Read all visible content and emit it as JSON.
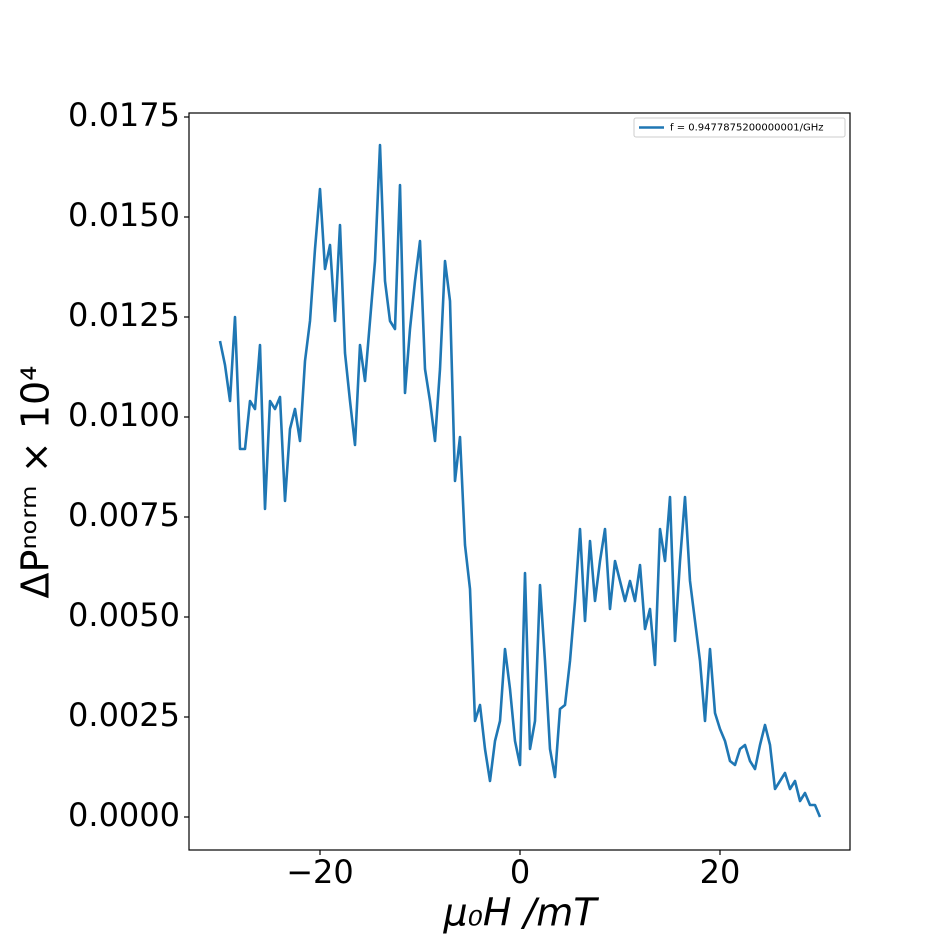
{
  "chart_data": {
    "type": "line",
    "x_label": "μ₀H /mT",
    "y_label": "ΔPⁿᵒʳᵐ × 10⁴",
    "legend_position": "upper right",
    "x": [
      -30,
      -29.5,
      -29,
      -28.5,
      -28,
      -27.5,
      -27,
      -26.5,
      -26,
      -25.5,
      -25,
      -24.5,
      -24,
      -23.5,
      -23,
      -22.5,
      -22,
      -21.5,
      -21,
      -20.5,
      -20,
      -19.5,
      -19,
      -18.5,
      -18,
      -17.5,
      -17,
      -16.5,
      -16,
      -15.5,
      -15,
      -14.5,
      -14,
      -13.5,
      -13,
      -12.5,
      -12,
      -11.5,
      -11,
      -10.5,
      -10,
      -9.5,
      -9,
      -8.5,
      -8,
      -7.5,
      -7,
      -6.5,
      -6,
      -5.5,
      -5,
      -4.5,
      -4,
      -3.5,
      -3,
      -2.5,
      -2,
      -1.5,
      -1,
      -0.5,
      0,
      0.5,
      1,
      1.5,
      2,
      2.5,
      3,
      3.5,
      4,
      4.5,
      5,
      5.5,
      6,
      6.5,
      7,
      7.5,
      8,
      8.5,
      9,
      9.5,
      10,
      10.5,
      11,
      11.5,
      12,
      12.5,
      13,
      13.5,
      14,
      14.5,
      15,
      15.5,
      16,
      16.5,
      17,
      17.5,
      18,
      18.5,
      19,
      19.5,
      20,
      20.5,
      21,
      21.5,
      22,
      22.5,
      23,
      23.5,
      24,
      24.5,
      25,
      25.5,
      26,
      26.5,
      27,
      27.5,
      28,
      28.5,
      29,
      29.5,
      30
    ],
    "series": [
      {
        "name": "f = 0.9477875200000001/GHz",
        "color": "#1f77b4",
        "values": [
          0.0119,
          0.0113,
          0.0104,
          0.0125,
          0.0092,
          0.0092,
          0.0104,
          0.0102,
          0.0118,
          0.0077,
          0.0104,
          0.0102,
          0.0105,
          0.0079,
          0.0097,
          0.0102,
          0.0094,
          0.0114,
          0.0124,
          0.0142,
          0.0157,
          0.0137,
          0.0143,
          0.0124,
          0.0148,
          0.0116,
          0.0104,
          0.0093,
          0.0118,
          0.0109,
          0.0124,
          0.0139,
          0.0168,
          0.0134,
          0.0124,
          0.0122,
          0.0158,
          0.0106,
          0.0122,
          0.0134,
          0.0144,
          0.0112,
          0.0104,
          0.0094,
          0.0112,
          0.0139,
          0.0129,
          0.0084,
          0.0095,
          0.0068,
          0.0057,
          0.0024,
          0.0028,
          0.0017,
          0.0009,
          0.0019,
          0.0024,
          0.0042,
          0.0032,
          0.0019,
          0.0013,
          0.0061,
          0.0017,
          0.0024,
          0.0058,
          0.0039,
          0.0017,
          0.001,
          0.0027,
          0.0028,
          0.0039,
          0.0054,
          0.0072,
          0.0049,
          0.0069,
          0.0054,
          0.0064,
          0.0072,
          0.0052,
          0.0064,
          0.0059,
          0.0054,
          0.0059,
          0.0054,
          0.0063,
          0.0047,
          0.0052,
          0.0038,
          0.0072,
          0.0064,
          0.008,
          0.0044,
          0.0064,
          0.008,
          0.0059,
          0.0049,
          0.0039,
          0.0024,
          0.0042,
          0.0026,
          0.0022,
          0.0019,
          0.0014,
          0.0013,
          0.0017,
          0.0018,
          0.0014,
          0.0012,
          0.0018,
          0.0023,
          0.0018,
          0.0007,
          0.0009,
          0.0011,
          0.0007,
          0.0009,
          0.0004,
          0.0006,
          0.0003,
          0.0003,
          0.0
        ]
      }
    ],
    "xlim": [
      -33.1,
      33
    ],
    "ylim": [
      -0.000825,
      0.0176
    ],
    "xticks": [
      {
        "value": -20,
        "label": "−20"
      },
      0,
      20
    ],
    "yticks": [
      {
        "value": 0,
        "label": "0.0000"
      },
      {
        "value": 0.0025,
        "label": "0.0025"
      },
      {
        "value": 0.005,
        "label": "0.0050"
      },
      {
        "value": 0.0075,
        "label": "0.0075"
      },
      {
        "value": 0.01,
        "label": "0.0100"
      },
      {
        "value": 0.0125,
        "label": "0.0125"
      },
      {
        "value": 0.015,
        "label": "0.0150"
      },
      {
        "value": 0.0175,
        "label": "0.0175"
      }
    ],
    "grid": false
  }
}
